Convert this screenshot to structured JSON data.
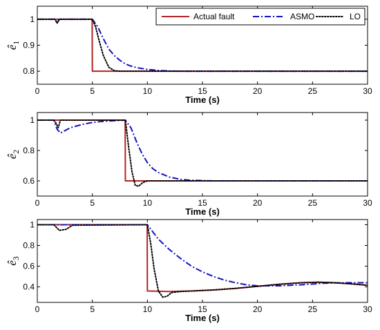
{
  "chart_data": [
    {
      "type": "line",
      "xlabel": "Time (s)",
      "ylabel": "ê",
      "ylabel_sub": "1",
      "xlim": [
        0,
        30
      ],
      "ylim": [
        0.75,
        1.05
      ],
      "xticks": [
        0,
        5,
        10,
        15,
        20,
        25,
        30
      ],
      "yticks": [
        0.8,
        0.9,
        1
      ],
      "ytick_labels": [
        "0.8",
        "0.9",
        "1"
      ],
      "grid": false,
      "legend": "top-right",
      "series": [
        {
          "name": "Actual fault",
          "color": "#b22222",
          "style": "solid",
          "x": [
            0,
            4.98,
            5.0,
            30
          ],
          "y": [
            1,
            1,
            0.8,
            0.8
          ]
        },
        {
          "name": "ASMO",
          "color": "#1010c0",
          "style": "dashdot",
          "x": [
            0,
            1.6,
            1.8,
            2.0,
            5,
            5.5,
            6,
            6.5,
            7,
            7.5,
            8,
            8.5,
            9,
            10,
            11,
            12,
            13,
            15,
            30
          ],
          "y": [
            1,
            1,
            0.985,
            1,
            1,
            0.97,
            0.925,
            0.885,
            0.86,
            0.842,
            0.828,
            0.82,
            0.814,
            0.807,
            0.803,
            0.801,
            0.8,
            0.8,
            0.8
          ]
        },
        {
          "name": "LO",
          "color": "#000000",
          "style": "dotted",
          "x": [
            0,
            1.6,
            1.8,
            2.0,
            5,
            5.3,
            5.6,
            6.0,
            6.5,
            7.0,
            7.5,
            8,
            30
          ],
          "y": [
            1,
            1,
            0.985,
            1,
            1,
            0.97,
            0.92,
            0.86,
            0.815,
            0.802,
            0.8,
            0.8,
            0.8
          ]
        }
      ]
    },
    {
      "type": "line",
      "xlabel": "Time (s)",
      "ylabel": "ê",
      "ylabel_sub": "2",
      "xlim": [
        0,
        30
      ],
      "ylim": [
        0.5,
        1.05
      ],
      "xticks": [
        0,
        5,
        10,
        15,
        20,
        25,
        30
      ],
      "yticks": [
        0.6,
        0.8,
        1
      ],
      "ytick_labels": [
        "0.6",
        "0.8",
        "1"
      ],
      "grid": false,
      "series": [
        {
          "name": "Actual fault",
          "color": "#b22222",
          "style": "solid",
          "x": [
            0,
            7.98,
            8.0,
            30
          ],
          "y": [
            1,
            1,
            0.6,
            0.6
          ]
        },
        {
          "name": "ASMO",
          "color": "#1010c0",
          "style": "dashdot",
          "x": [
            0,
            1.5,
            1.8,
            2.1,
            3,
            4,
            5,
            6,
            7,
            8,
            8.5,
            9,
            9.5,
            10,
            10.5,
            11,
            12,
            13,
            14,
            16,
            30
          ],
          "y": [
            1,
            1,
            0.94,
            0.915,
            0.95,
            0.97,
            0.985,
            0.992,
            0.996,
            1,
            0.95,
            0.86,
            0.78,
            0.72,
            0.68,
            0.655,
            0.625,
            0.61,
            0.604,
            0.6,
            0.6
          ]
        },
        {
          "name": "LO",
          "color": "#000000",
          "style": "dotted",
          "x": [
            0,
            1.5,
            1.7,
            1.9,
            2.1,
            8,
            8.3,
            8.6,
            8.9,
            9.2,
            9.6,
            10,
            11,
            30
          ],
          "y": [
            1,
            1,
            0.98,
            0.95,
            1,
            1,
            0.82,
            0.66,
            0.57,
            0.565,
            0.59,
            0.6,
            0.6,
            0.6
          ]
        }
      ]
    },
    {
      "type": "line",
      "xlabel": "Time (s)",
      "ylabel": "ê",
      "ylabel_sub": "3",
      "xlim": [
        0,
        30
      ],
      "ylim": [
        0.25,
        1.05
      ],
      "xticks": [
        0,
        5,
        10,
        15,
        20,
        25,
        30
      ],
      "yticks": [
        0.4,
        0.6,
        0.8,
        1
      ],
      "ytick_labels": [
        "0.4",
        "0.6",
        "0.8",
        "1"
      ],
      "grid": false,
      "series": [
        {
          "name": "Actual fault",
          "color": "#b22222",
          "style": "solid",
          "x": [
            0,
            9.98,
            10.0,
            12,
            14,
            16,
            18,
            20,
            22,
            24,
            25.5,
            27,
            29,
            30
          ],
          "y": [
            1,
            1,
            0.36,
            0.355,
            0.36,
            0.37,
            0.385,
            0.405,
            0.425,
            0.44,
            0.445,
            0.44,
            0.425,
            0.415
          ]
        },
        {
          "name": "ASMO",
          "color": "#1010c0",
          "style": "dashdot",
          "x": [
            0,
            10,
            10.5,
            11,
            12,
            13,
            14,
            15,
            16,
            17,
            18,
            19,
            20,
            22,
            24,
            26,
            28,
            30
          ],
          "y": [
            1,
            1,
            0.93,
            0.86,
            0.76,
            0.675,
            0.6,
            0.545,
            0.5,
            0.465,
            0.44,
            0.42,
            0.41,
            0.41,
            0.42,
            0.435,
            0.44,
            0.44
          ]
        },
        {
          "name": "LO",
          "color": "#000000",
          "style": "dotted",
          "x": [
            0,
            1.5,
            2.0,
            2.6,
            3.2,
            10,
            10.3,
            10.6,
            11.0,
            11.4,
            11.8,
            12.2,
            13,
            14,
            16,
            18,
            20,
            22,
            24,
            25.5,
            27,
            29,
            30
          ],
          "y": [
            1,
            1,
            0.945,
            0.955,
            0.995,
            1,
            0.82,
            0.58,
            0.36,
            0.3,
            0.31,
            0.345,
            0.355,
            0.36,
            0.37,
            0.385,
            0.405,
            0.425,
            0.44,
            0.445,
            0.44,
            0.425,
            0.415
          ]
        }
      ]
    }
  ]
}
